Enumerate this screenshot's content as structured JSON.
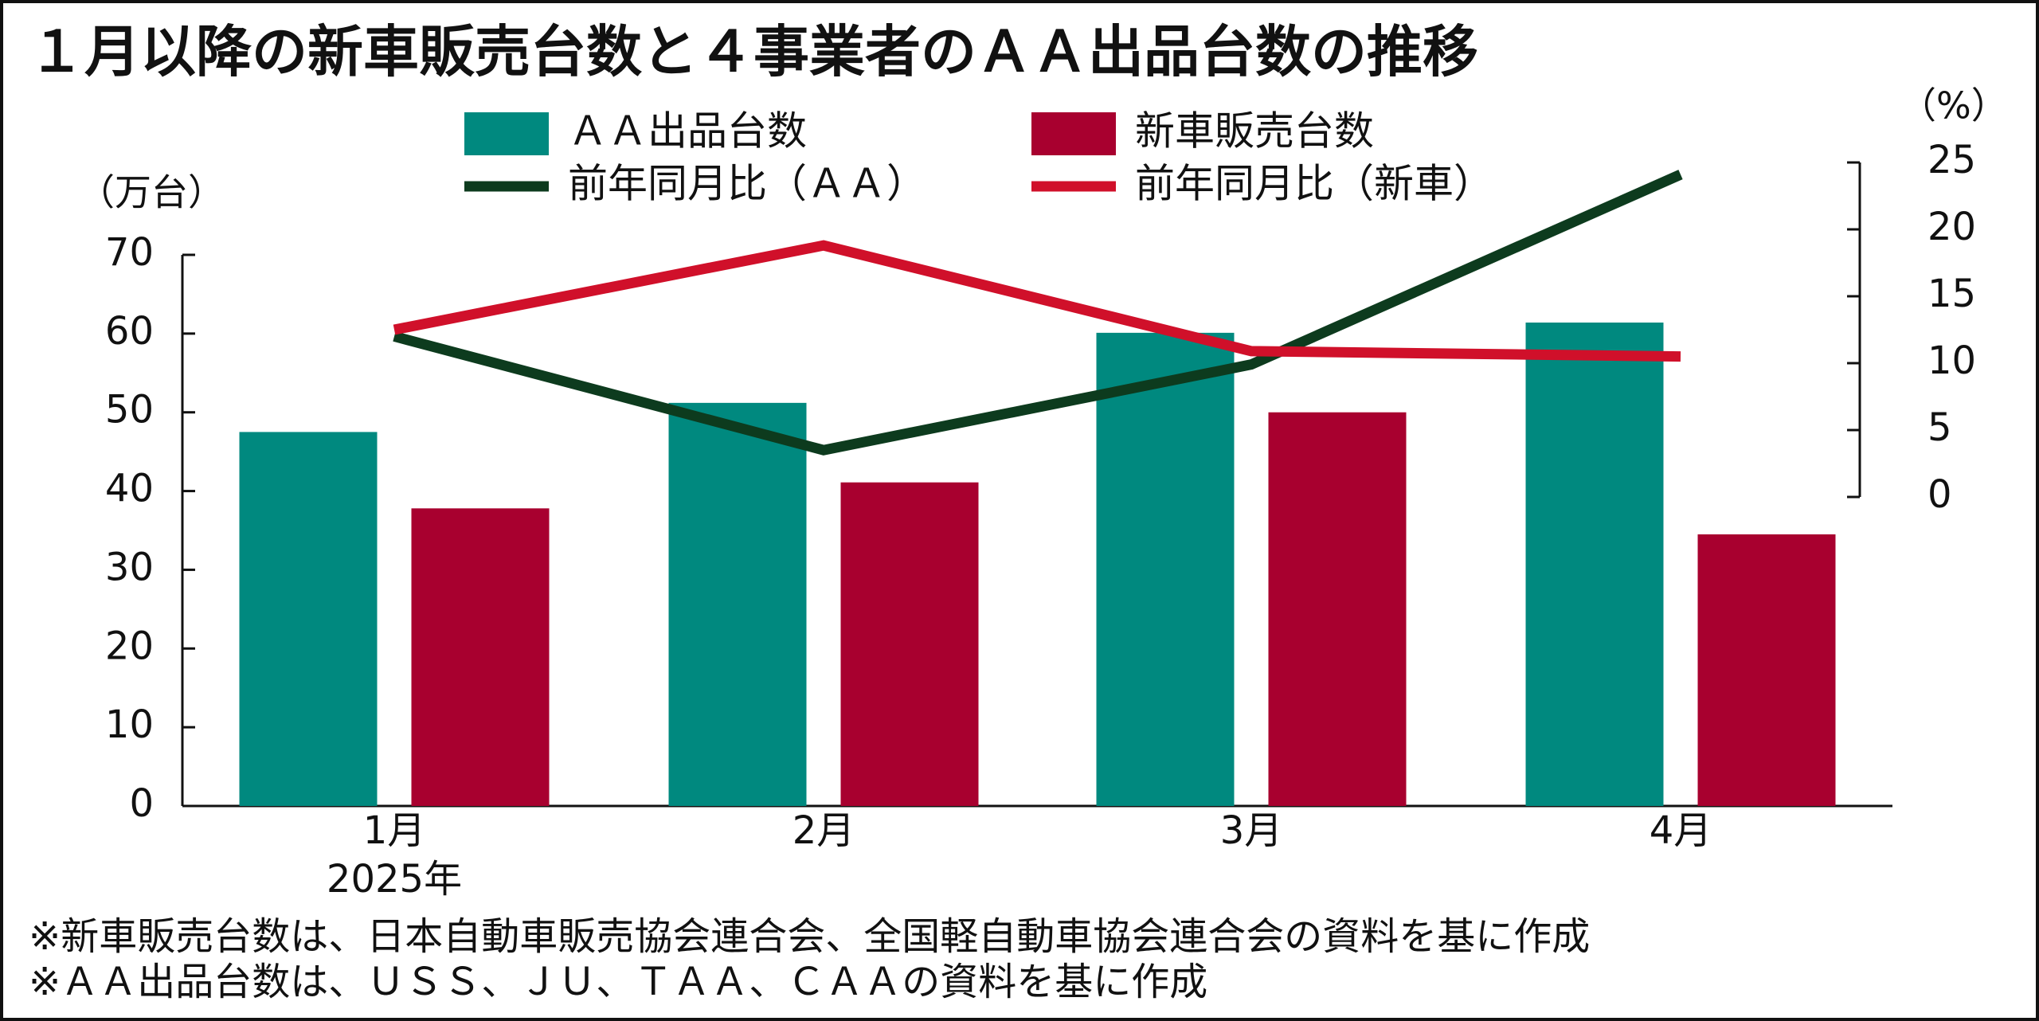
{
  "chart_data": {
    "type": "combo",
    "title": "１月以降の新車販売台数と４事業者のＡＡ出品台数の推移",
    "categories": [
      "1月",
      "2月",
      "3月",
      "4月"
    ],
    "year_label": "2025年",
    "y_label": "（万台）",
    "y2_label": "（%）",
    "ylim": [
      0,
      70
    ],
    "yticks": [
      0,
      10,
      20,
      30,
      40,
      50,
      60,
      70
    ],
    "y2lim": [
      0,
      25
    ],
    "y2ticks": [
      0,
      5,
      10,
      15,
      20,
      25
    ],
    "series": [
      {
        "name": "ＡＡ出品台数",
        "type": "bar",
        "color": "#00897f",
        "values": [
          47.5,
          51.2,
          60.1,
          61.4
        ]
      },
      {
        "name": "新車販売台数",
        "type": "bar",
        "color": "#a8002f",
        "values": [
          37.8,
          41.1,
          50.0,
          34.5
        ]
      },
      {
        "name": "前年同月比（ＡＡ）",
        "type": "line",
        "axis": "y2",
        "color": "#0d3b1e",
        "values": [
          12.0,
          3.5,
          9.9,
          24.1
        ]
      },
      {
        "name": "前年同月比（新車）",
        "type": "line",
        "axis": "y2",
        "color": "#d0102a",
        "values": [
          12.5,
          18.8,
          10.9,
          10.5
        ]
      }
    ],
    "notes": [
      "※新車販売台数は、日本自動車販売協会連合会、全国軽自動車協会連合会の資料を基に作成",
      "※ＡＡ出品台数は、ＵＳＳ、ＪＵ、ＴＡＡ、ＣＡＡの資料を基に作成"
    ]
  }
}
